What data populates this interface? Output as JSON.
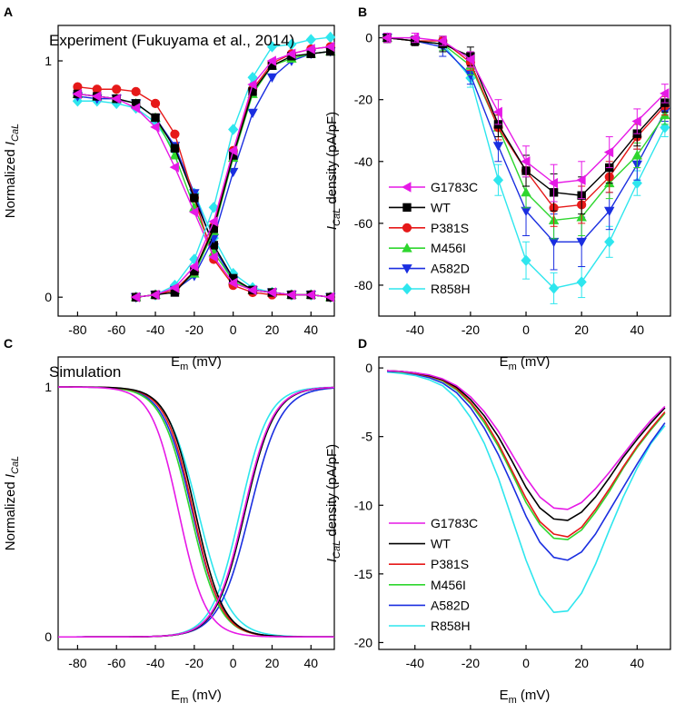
{
  "figure": {
    "panel_labels": [
      "A",
      "B",
      "C",
      "D"
    ],
    "annotation_top": "Experiment (Fukuyama et al., 2014)",
    "annotation_bottom": "Simulation",
    "xlabel_main": "E",
    "xlabel_sub": "m",
    "xlabel_unit": " (mV)",
    "ylabel_norm_pre": "Normalized ",
    "ylabel_cur_main": "I",
    "ylabel_cur_sub": "CaL",
    "ylabel_dens_post": " density (pA/pF)"
  },
  "series": [
    {
      "name": "G1783C",
      "color": "#e619e6",
      "marker": "triangle-left"
    },
    {
      "name": "WT",
      "color": "#000000",
      "marker": "square"
    },
    {
      "name": "P381S",
      "color": "#e61919",
      "marker": "circle"
    },
    {
      "name": "M456I",
      "color": "#2ed62e",
      "marker": "triangle-up"
    },
    {
      "name": "A582D",
      "color": "#1a2ee0",
      "marker": "triangle-down"
    },
    {
      "name": "R858H",
      "color": "#2ee6ee",
      "marker": "diamond"
    }
  ],
  "chart_data": [
    {
      "panel": "A",
      "type": "scatter",
      "title": "Experiment (Fukuyama et al., 2014)",
      "xlabel": "Em (mV)",
      "ylabel": "Normalized ICaL",
      "xlim": [
        -90,
        52
      ],
      "ylim": [
        -0.08,
        1.15
      ],
      "xticks": [
        -80,
        -60,
        -40,
        -20,
        0,
        20,
        40
      ],
      "yticks": [
        0,
        1
      ],
      "inactivation": {
        "x": [
          -80,
          -70,
          -60,
          -50,
          -40,
          -30,
          -20,
          -10,
          0,
          10,
          20,
          30,
          40,
          50
        ],
        "series": [
          {
            "name": "G1783C",
            "values": [
              0.86,
              0.85,
              0.84,
              0.8,
              0.72,
              0.55,
              0.36,
              0.17,
              0.06,
              0.03,
              0.02,
              0.01,
              0.01,
              0.0
            ]
          },
          {
            "name": "WT",
            "values": [
              0.86,
              0.85,
              0.84,
              0.82,
              0.76,
              0.63,
              0.42,
              0.22,
              0.08,
              0.03,
              0.02,
              0.01,
              0.01,
              0.0
            ]
          },
          {
            "name": "P381S",
            "values": [
              0.89,
              0.88,
              0.88,
              0.87,
              0.82,
              0.69,
              0.42,
              0.16,
              0.05,
              0.02,
              0.01,
              0.01,
              0.01,
              0.0
            ]
          },
          {
            "name": "M456I",
            "values": [
              0.86,
              0.85,
              0.84,
              0.82,
              0.76,
              0.6,
              0.38,
              0.19,
              0.07,
              0.03,
              0.02,
              0.01,
              0.01,
              0.0
            ]
          },
          {
            "name": "A582D",
            "values": [
              0.85,
              0.84,
              0.84,
              0.82,
              0.76,
              0.64,
              0.44,
              0.21,
              0.07,
              0.03,
              0.02,
              0.01,
              0.01,
              0.0
            ]
          },
          {
            "name": "R858H",
            "values": [
              0.83,
              0.83,
              0.82,
              0.8,
              0.74,
              0.62,
              0.44,
              0.25,
              0.1,
              0.04,
              0.02,
              0.01,
              0.01,
              0.0
            ]
          }
        ]
      },
      "activation": {
        "x": [
          -50,
          -40,
          -30,
          -20,
          -10,
          0,
          10,
          20,
          30,
          40,
          50
        ],
        "series": [
          {
            "name": "G1783C",
            "values": [
              0.0,
              0.01,
              0.04,
              0.13,
              0.32,
              0.62,
              0.9,
              1.0,
              1.03,
              1.05,
              1.06
            ]
          },
          {
            "name": "WT",
            "values": [
              0.0,
              0.01,
              0.02,
              0.11,
              0.29,
              0.6,
              0.87,
              0.98,
              1.02,
              1.03,
              1.04
            ]
          },
          {
            "name": "P381S",
            "values": [
              0.0,
              0.01,
              0.03,
              0.11,
              0.3,
              0.62,
              0.88,
              0.99,
              1.03,
              1.05,
              1.06
            ]
          },
          {
            "name": "M456I",
            "values": [
              0.0,
              0.01,
              0.03,
              0.1,
              0.28,
              0.59,
              0.86,
              0.98,
              1.01,
              1.03,
              1.04
            ]
          },
          {
            "name": "A582D",
            "values": [
              0.0,
              0.01,
              0.03,
              0.09,
              0.25,
              0.53,
              0.78,
              0.93,
              1.0,
              1.03,
              1.04
            ]
          },
          {
            "name": "R858H",
            "values": [
              0.0,
              0.01,
              0.05,
              0.16,
              0.38,
              0.71,
              0.93,
              1.06,
              1.07,
              1.09,
              1.1
            ]
          }
        ]
      }
    },
    {
      "panel": "B",
      "type": "scatter",
      "xlabel": "Em (mV)",
      "ylabel": "ICaL density (pA/pF)",
      "xlim": [
        -53,
        52
      ],
      "ylim": [
        -90,
        4
      ],
      "xticks": [
        -40,
        -20,
        0,
        20,
        40
      ],
      "yticks": [
        0,
        -20,
        -40,
        -60,
        -80
      ],
      "x": [
        -50,
        -40,
        -30,
        -20,
        -10,
        0,
        10,
        20,
        30,
        40,
        50
      ],
      "series": [
        {
          "name": "G1783C",
          "values": [
            0,
            0,
            -1,
            -7,
            -24,
            -40,
            -47,
            -46,
            -37,
            -27,
            -18
          ],
          "errors": [
            1.5,
            1.5,
            1.5,
            2.5,
            4,
            5,
            6,
            6,
            5,
            4,
            3
          ]
        },
        {
          "name": "WT",
          "values": [
            0,
            -1,
            -2,
            -6,
            -28,
            -43,
            -50,
            -51,
            -42,
            -31,
            -21
          ],
          "errors": [
            1.5,
            1.5,
            2.5,
            3,
            4,
            5,
            6,
            6,
            5,
            4,
            3
          ]
        },
        {
          "name": "P381S",
          "values": [
            0,
            -1,
            -1,
            -8,
            -29,
            -43,
            -55,
            -54,
            -45,
            -32,
            -22
          ],
          "errors": [
            1.5,
            1.5,
            1.5,
            2.5,
            4,
            5,
            6,
            6,
            5,
            4,
            3
          ]
        },
        {
          "name": "M456I",
          "values": [
            0,
            -1,
            -2,
            -9,
            -29,
            -50,
            -59,
            -58,
            -47,
            -38,
            -25
          ],
          "errors": [
            1.5,
            1.5,
            2,
            3,
            4,
            5,
            6,
            6,
            5,
            4,
            3
          ]
        },
        {
          "name": "A582D",
          "values": [
            0,
            -1,
            -3,
            -12,
            -35,
            -56,
            -66,
            -66,
            -56,
            -41,
            -24
          ],
          "errors": [
            1.5,
            1.5,
            3,
            3,
            5,
            8,
            9,
            8,
            6,
            5,
            3
          ]
        },
        {
          "name": "R858H",
          "values": [
            0,
            -1,
            -2,
            -13,
            -46,
            -72,
            -81,
            -79,
            -66,
            -47,
            -29
          ],
          "errors": [
            1.5,
            1.5,
            2.5,
            3,
            5,
            6,
            5,
            5,
            5,
            4,
            3
          ]
        }
      ]
    },
    {
      "panel": "C",
      "type": "line",
      "title": "Simulation",
      "xlabel": "Em (mV)",
      "ylabel": "Normalized ICaL",
      "xlim": [
        -90,
        52
      ],
      "ylim": [
        -0.05,
        1.12
      ],
      "xticks": [
        -80,
        -60,
        -40,
        -20,
        0,
        20,
        40
      ],
      "yticks": [
        0,
        1
      ],
      "curves": [
        {
          "name": "G1783C",
          "inact_v_half": -28,
          "inact_k": 7.0,
          "act_v_half": 5.5,
          "act_k": 7.5
        },
        {
          "name": "WT",
          "inact_v_half": -19.5,
          "inact_k": 7.2,
          "act_v_half": 6.0,
          "act_k": 7.5
        },
        {
          "name": "P381S",
          "inact_v_half": -20.5,
          "inact_k": 7.2,
          "act_v_half": 5.5,
          "act_k": 7.5
        },
        {
          "name": "M456I",
          "inact_v_half": -22.0,
          "inact_k": 7.5,
          "act_v_half": 6.0,
          "act_k": 7.5
        },
        {
          "name": "A582D",
          "inact_v_half": -21.0,
          "inact_k": 7.5,
          "act_v_half": 8.5,
          "act_k": 8.0
        },
        {
          "name": "R858H",
          "inact_v_half": -18.0,
          "inact_k": 8.0,
          "act_v_half": 3.5,
          "act_k": 7.3
        }
      ]
    },
    {
      "panel": "D",
      "type": "line",
      "xlabel": "Em (mV)",
      "ylabel": "ICaL density (pA/pF)",
      "xlim": [
        -53,
        52
      ],
      "ylim": [
        -20.5,
        0.8
      ],
      "xticks": [
        -40,
        -20,
        0,
        20,
        40
      ],
      "yticks": [
        0,
        -5,
        -10,
        -15,
        -20
      ],
      "x": [
        -50,
        -45,
        -40,
        -35,
        -30,
        -25,
        -20,
        -15,
        -10,
        -5,
        0,
        5,
        10,
        15,
        20,
        25,
        30,
        35,
        40,
        45,
        50
      ],
      "series": [
        {
          "name": "G1783C",
          "values": [
            -0.2,
            -0.25,
            -0.35,
            -0.5,
            -0.8,
            -1.3,
            -2.1,
            -3.2,
            -4.6,
            -6.3,
            -8.0,
            -9.4,
            -10.2,
            -10.3,
            -9.8,
            -8.8,
            -7.6,
            -6.3,
            -5.0,
            -3.8,
            -2.8
          ]
        },
        {
          "name": "WT",
          "values": [
            -0.2,
            -0.25,
            -0.35,
            -0.55,
            -0.85,
            -1.4,
            -2.3,
            -3.5,
            -5.0,
            -6.8,
            -8.7,
            -10.2,
            -11.0,
            -11.1,
            -10.5,
            -9.4,
            -8.0,
            -6.5,
            -5.2,
            -4.0,
            -2.9
          ]
        },
        {
          "name": "P381S",
          "values": [
            -0.2,
            -0.25,
            -0.4,
            -0.6,
            -0.9,
            -1.5,
            -2.5,
            -3.8,
            -5.5,
            -7.5,
            -9.5,
            -11.2,
            -12.1,
            -12.3,
            -11.6,
            -10.3,
            -8.8,
            -7.2,
            -5.7,
            -4.4,
            -3.2
          ]
        },
        {
          "name": "M456I",
          "values": [
            -0.2,
            -0.3,
            -0.4,
            -0.6,
            -0.95,
            -1.6,
            -2.6,
            -4.0,
            -5.7,
            -7.7,
            -9.8,
            -11.4,
            -12.4,
            -12.5,
            -11.8,
            -10.5,
            -9.0,
            -7.3,
            -5.8,
            -4.5,
            -3.3
          ]
        },
        {
          "name": "A582D",
          "values": [
            -0.25,
            -0.3,
            -0.45,
            -0.7,
            -1.1,
            -1.8,
            -2.9,
            -4.4,
            -6.3,
            -8.5,
            -10.8,
            -12.7,
            -13.8,
            -14.0,
            -13.4,
            -12.1,
            -10.4,
            -8.7,
            -7.0,
            -5.4,
            -4.0
          ]
        },
        {
          "name": "R858H",
          "values": [
            -0.3,
            -0.4,
            -0.55,
            -0.85,
            -1.3,
            -2.2,
            -3.6,
            -5.5,
            -8.0,
            -11.0,
            -14.0,
            -16.5,
            -17.8,
            -17.7,
            -16.4,
            -14.3,
            -11.8,
            -9.4,
            -7.3,
            -5.5,
            -4.2
          ]
        }
      ]
    }
  ]
}
